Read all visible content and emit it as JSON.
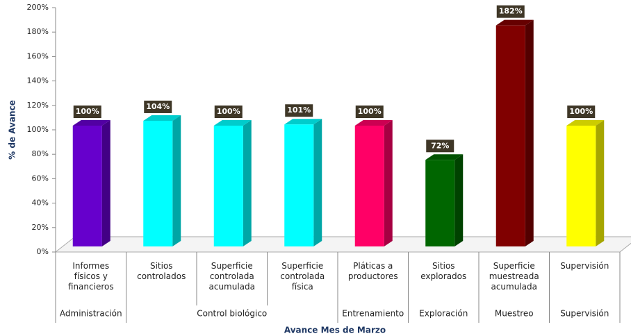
{
  "chart_data": {
    "type": "bar3d",
    "y_label": "% de Avance",
    "x_label": "Avance Mes de Marzo",
    "categories": [
      "Informes\nfísicos y\nfinancieros",
      "Sitios\ncontrolados",
      "Superficie\ncontrolada\nacumulada",
      "Superficie\ncontrolada\nfísica",
      "Pláticas a\nproductores",
      "Sitios\nexplorados",
      "Superficie\nmuestreada\nacumulada",
      "Supervisión"
    ],
    "groups": [
      {
        "name": "Administración",
        "count": 1
      },
      {
        "name": "Control biológico",
        "count": 3
      },
      {
        "name": "Entrenamiento",
        "count": 1
      },
      {
        "name": "Exploración",
        "count": 1
      },
      {
        "name": "Muestreo",
        "count": 1
      },
      {
        "name": "Supervisión",
        "count": 1
      }
    ],
    "values": [
      100,
      104,
      100,
      101,
      100,
      72,
      182,
      100
    ],
    "value_labels": [
      "100%",
      "104%",
      "100%",
      "101%",
      "100%",
      "72%",
      "182%",
      "100%"
    ],
    "colors": [
      "#6600cc",
      "#00ffff",
      "#00ffff",
      "#00ffff",
      "#ff0066",
      "#006600",
      "#800000",
      "#ffff00"
    ],
    "ylim": [
      0,
      200
    ],
    "yticks": [
      {
        "value": 0,
        "label": "0%"
      },
      {
        "value": 20,
        "label": "20%"
      },
      {
        "value": 40,
        "label": "40%"
      },
      {
        "value": 60,
        "label": "60%"
      },
      {
        "value": 80,
        "label": "80%"
      },
      {
        "value": 100,
        "label": "100%"
      },
      {
        "value": 120,
        "label": "120%"
      },
      {
        "value": 140,
        "label": "140%"
      },
      {
        "value": 160,
        "label": "160%"
      },
      {
        "value": 180,
        "label": "180%"
      },
      {
        "value": 200,
        "label": "200%"
      }
    ]
  }
}
